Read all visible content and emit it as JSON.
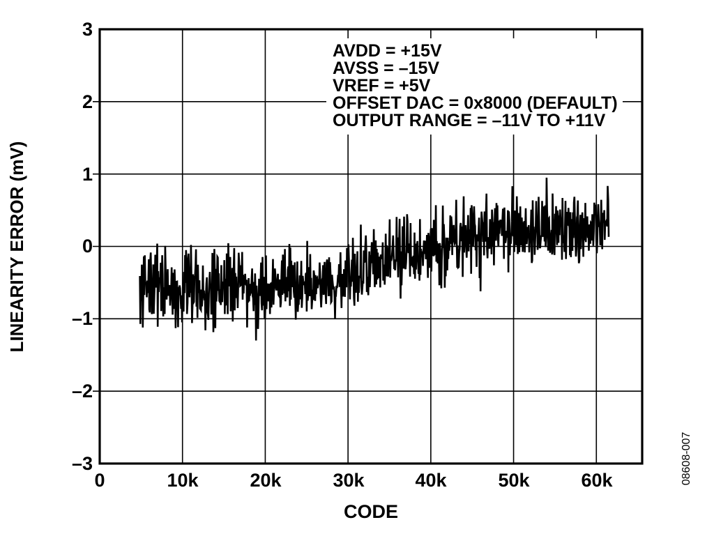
{
  "figure": {
    "code": "08608-007",
    "background_color": "#ffffff",
    "ink_color": "#000000"
  },
  "chart_data": {
    "type": "line",
    "title": "",
    "xlabel": "CODE",
    "ylabel": "LINEARITY ERROR (mV)",
    "xlim": [
      0,
      65536
    ],
    "ylim": [
      -3,
      3
    ],
    "grid": "on",
    "legend": "none",
    "x_tick_values": [
      0,
      10000,
      20000,
      30000,
      40000,
      50000,
      60000
    ],
    "x_tick_labels": [
      "0",
      "10k",
      "20k",
      "30k",
      "40k",
      "50k",
      "60k"
    ],
    "y_tick_values": [
      3,
      2,
      1,
      0,
      -1,
      -2,
      -3
    ],
    "y_tick_labels": [
      "3",
      "2",
      "1",
      "0",
      "–1",
      "–2",
      "–3"
    ],
    "annotations": {
      "lines": [
        "AVDD = +15V",
        "AVSS = –15V",
        "VREF = +5V",
        "OFFSET DAC = 0x8000 (DEFAULT)",
        "OUTPUT RANGE = –11V TO +11V"
      ]
    },
    "series": [
      {
        "name": "linearity error",
        "style": "dense-noise-band",
        "color": "#000000",
        "code_range": [
          4850,
          61500
        ],
        "trend_points": [
          [
            4850,
            -0.5
          ],
          [
            8000,
            -0.56
          ],
          [
            12000,
            -0.6
          ],
          [
            16000,
            -0.57
          ],
          [
            20000,
            -0.6
          ],
          [
            24000,
            -0.54
          ],
          [
            28000,
            -0.44
          ],
          [
            32000,
            -0.3
          ],
          [
            36000,
            -0.13
          ],
          [
            40000,
            -0.02
          ],
          [
            44000,
            0.1
          ],
          [
            48000,
            0.2
          ],
          [
            52000,
            0.22
          ],
          [
            56000,
            0.26
          ],
          [
            61500,
            0.25
          ]
        ],
        "noise_half_width_mV": 0.48,
        "spikes": [
          [
            5200,
            -1.12
          ],
          [
            18900,
            -1.3
          ],
          [
            28400,
            -1.0
          ],
          [
            46000,
            -0.62
          ],
          [
            54000,
            0.95
          ]
        ]
      }
    ]
  }
}
